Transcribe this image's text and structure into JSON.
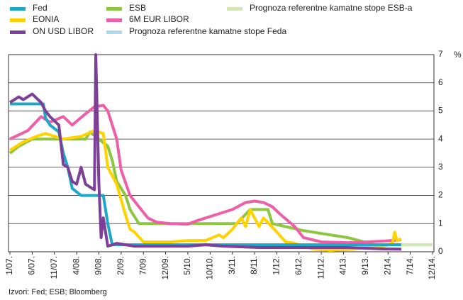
{
  "chart_data": {
    "type": "line",
    "source": "Izvori: Fed; ESB; Bloomberg",
    "y_unit": "%",
    "xlim": [
      0,
      95
    ],
    "xticks": [
      {
        "value": 0,
        "label": "1/07."
      },
      {
        "value": 5,
        "label": "6/07."
      },
      {
        "value": 10,
        "label": "11/07."
      },
      {
        "value": 15,
        "label": "4/08."
      },
      {
        "value": 20,
        "label": "9/08."
      },
      {
        "value": 25,
        "label": "2/09."
      },
      {
        "value": 30,
        "label": "7/09."
      },
      {
        "value": 35,
        "label": "12/09."
      },
      {
        "value": 40,
        "label": "5/10."
      },
      {
        "value": 45,
        "label": "10/10."
      },
      {
        "value": 50,
        "label": "3/11."
      },
      {
        "value": 55,
        "label": "8/11."
      },
      {
        "value": 60,
        "label": "1/12."
      },
      {
        "value": 65,
        "label": "6/12."
      },
      {
        "value": 70,
        "label": "11/12."
      },
      {
        "value": 75,
        "label": "4/13."
      },
      {
        "value": 80,
        "label": "9/13."
      },
      {
        "value": 85,
        "label": "2/14."
      },
      {
        "value": 90,
        "label": "7/14."
      },
      {
        "value": 95,
        "label": "12/14."
      }
    ],
    "ylim": [
      0,
      7
    ],
    "yticks": [
      0,
      1,
      2,
      3,
      4,
      5,
      6,
      7
    ],
    "grid": true,
    "series": [
      {
        "name": "ESB",
        "color": "#8dc63f",
        "x": [
          0,
          2,
          5,
          17,
          18,
          22,
          23,
          24,
          26,
          27,
          28,
          29,
          51,
          54,
          58,
          59,
          66,
          76,
          82,
          88
        ],
        "values": [
          3.5,
          3.75,
          4,
          4,
          4.25,
          3.75,
          3.25,
          2.5,
          2,
          1.5,
          1.25,
          1,
          1,
          1.5,
          1.5,
          1,
          0.75,
          0.5,
          0.25,
          0.25
        ]
      },
      {
        "name": "6M EUR LIBOR",
        "color": "#ef5fa7",
        "x": [
          0,
          4,
          7,
          9,
          12,
          14,
          17,
          19,
          21,
          22,
          24,
          25,
          27,
          29,
          31,
          33,
          36,
          40,
          42,
          44,
          46,
          50,
          53,
          55,
          57,
          59,
          61,
          64,
          66,
          70,
          76,
          80,
          84,
          88
        ],
        "values": [
          4,
          4.3,
          4.8,
          4.6,
          4.8,
          4.5,
          4.9,
          5.15,
          5.2,
          5,
          4,
          2.9,
          2,
          1.6,
          1.2,
          1.05,
          1,
          0.98,
          1.1,
          1.2,
          1.3,
          1.5,
          1.75,
          1.8,
          1.75,
          1.6,
          1.3,
          0.9,
          0.5,
          0.35,
          0.32,
          0.35,
          0.38,
          0.42
        ]
      },
      {
        "name": "EONIA",
        "color": "#ffd200",
        "x": [
          0,
          3,
          6,
          8,
          12,
          16,
          19,
          21,
          22,
          24,
          26,
          27,
          28,
          30,
          36,
          40,
          44,
          47,
          48,
          50,
          52,
          53,
          54,
          56,
          57,
          60,
          62,
          64,
          68,
          72,
          76,
          80,
          84,
          86,
          86.5,
          87,
          88
        ],
        "values": [
          3.6,
          3.9,
          4.1,
          4.2,
          4,
          4.1,
          4.3,
          4.2,
          3,
          2.4,
          1.3,
          0.8,
          0.7,
          0.35,
          0.35,
          0.4,
          0.4,
          0.6,
          0.5,
          0.8,
          1.2,
          0.9,
          1.5,
          0.9,
          1.2,
          0.7,
          0.35,
          0.3,
          0.1,
          0.05,
          0.08,
          0.15,
          0.2,
          0.3,
          0.7,
          0.4,
          0.45
        ]
      },
      {
        "name": "Fed",
        "color": "#1fa8c6",
        "x": [
          0,
          7.5,
          8,
          9,
          11,
          12,
          13,
          14,
          16,
          21,
          22,
          23,
          88
        ],
        "values": [
          5.25,
          5.25,
          4.75,
          4.5,
          4.25,
          3.5,
          3,
          2.25,
          2,
          2,
          1,
          0.25,
          0.25
        ]
      },
      {
        "name": "ON USD LIBOR",
        "color": "#7d3f98",
        "x": [
          0,
          2,
          3,
          5,
          7,
          8,
          9,
          11,
          12,
          13,
          14,
          15,
          16,
          17,
          18,
          19,
          19.3,
          20,
          20.5,
          21,
          22,
          24,
          28,
          40,
          44,
          48,
          56,
          66,
          76,
          84,
          88
        ],
        "values": [
          5.3,
          5.5,
          5.4,
          5.6,
          5.3,
          5,
          4.8,
          4.5,
          3.1,
          3,
          2.5,
          2.4,
          3,
          2.4,
          2.3,
          2.2,
          7,
          2.4,
          0.5,
          1.2,
          0.2,
          0.3,
          0.2,
          0.2,
          0.25,
          0.2,
          0.15,
          0.15,
          0.15,
          0.1,
          0.09
        ]
      },
      {
        "name": "Prognoza referentne kamatne stope Feda",
        "color": "#a9dcef",
        "x": [
          88,
          95
        ],
        "values": [
          0.25,
          0.25
        ]
      },
      {
        "name": "Prognoza referentne kamatne stope ESB-a",
        "color": "#cfe8b4",
        "x": [
          88,
          95
        ],
        "values": [
          0.25,
          0.25
        ]
      }
    ]
  }
}
